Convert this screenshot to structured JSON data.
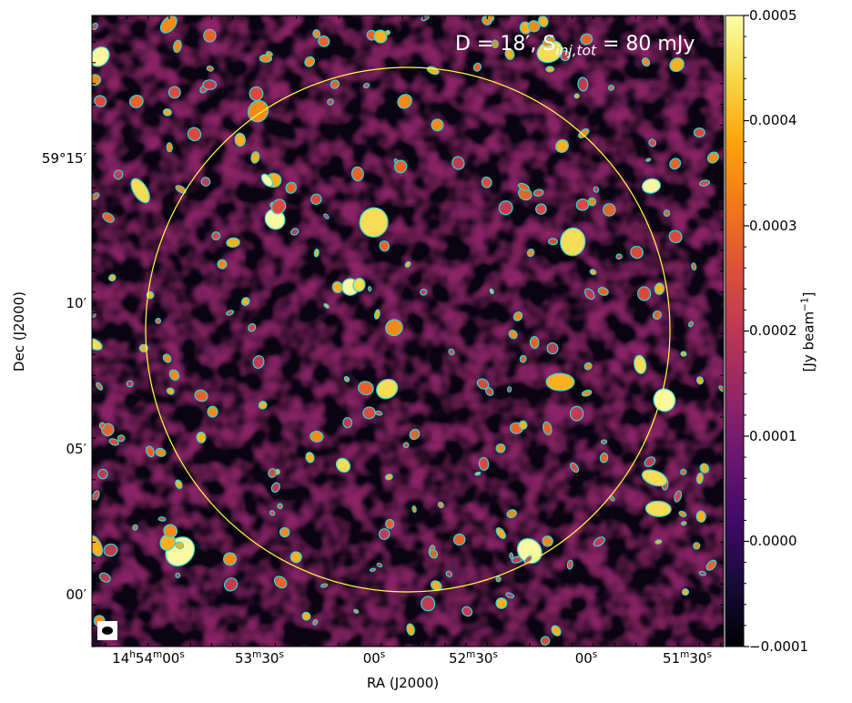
{
  "annotation": {
    "pre": "D = 18′, S",
    "sub": "inj,tot",
    "post": " = 80 mJy"
  },
  "axes": {
    "xlabel": "RA (J2000)",
    "ylabel": "Dec (J2000)",
    "x_ticks": [
      {
        "h": "14",
        "hs": "h",
        "m": "54",
        "ms": "m",
        "s": "00",
        "ss": "s"
      },
      {
        "h": "",
        "hs": "",
        "m": "53",
        "ms": "m",
        "s": "30",
        "ss": "s"
      },
      {
        "h": "",
        "hs": "",
        "m": "",
        "ms": "",
        "s": "00",
        "ss": "s"
      },
      {
        "h": "",
        "hs": "",
        "m": "52",
        "ms": "m",
        "s": "30",
        "ss": "s"
      },
      {
        "h": "",
        "hs": "",
        "m": "",
        "ms": "",
        "s": "00",
        "ss": "s"
      },
      {
        "h": "",
        "hs": "",
        "m": "51",
        "ms": "m",
        "s": "30",
        "ss": "s"
      }
    ],
    "y_ticks": [
      "59°15′",
      "10′",
      "05′",
      "00′"
    ]
  },
  "colorbar": {
    "label_pre": "[Jy beam",
    "label_sup": "−1",
    "label_post": "]",
    "ticks": [
      "0.0005",
      "0.0004",
      "0.0003",
      "0.0002",
      "0.0001",
      "0.0000",
      "−0.0001"
    ],
    "range": [
      -0.0001,
      0.0005
    ],
    "colormap": "inferno"
  },
  "colors": {
    "contour": "#2fd6d6",
    "circle": "#ffff40",
    "beam_box": "#ffffff",
    "beam": "#000000"
  }
}
